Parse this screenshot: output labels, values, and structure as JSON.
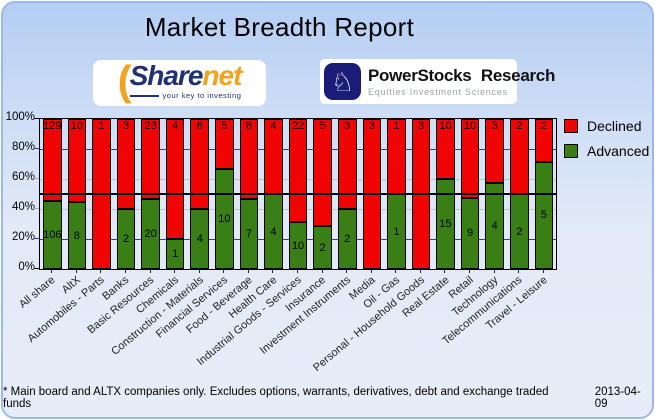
{
  "header": {
    "title": "Market Breadth Report",
    "sharenet_logo": {
      "paren": "(",
      "share_text": "Share",
      "net_text": "net",
      "tagline": "your key to investing"
    },
    "powerstocks_logo": {
      "knight_icon": "♘",
      "name": "PowerStocks  Research",
      "tagline": "Equities Investment Sciences"
    }
  },
  "chart_data": {
    "type": "bar",
    "stacked": true,
    "title": "Market Breadth Report",
    "xlabel": "",
    "ylabel": "",
    "ylim": [
      0,
      100
    ],
    "y_ticks": [
      "0%",
      "20%",
      "40%",
      "60%",
      "80%",
      "100%"
    ],
    "midline_pct": 50,
    "legend_position": "right",
    "grid": "horizontal",
    "categories": [
      "All share",
      "AltX",
      "Automobiles - Parts",
      "Banks",
      "Basic Resources",
      "Chemicals",
      "Construction - Materials",
      "Financial Services",
      "Food - Beverage",
      "Health Care",
      "Industrial Goods - Services",
      "Insurance",
      "Investment Instruments",
      "Media",
      "Oil - Gas",
      "Personal - Household Goods",
      "Real Estate",
      "Retail",
      "Technology",
      "Telecommunications",
      "Travel - Leisure"
    ],
    "series": [
      {
        "name": "Declined",
        "color": "#f00404",
        "values": [
          129,
          10,
          1,
          3,
          23,
          4,
          6,
          5,
          8,
          4,
          22,
          5,
          3,
          3,
          1,
          3,
          10,
          10,
          3,
          2,
          2
        ]
      },
      {
        "name": "Advanced",
        "color": "#3a7e16",
        "values": [
          106,
          8,
          0,
          2,
          20,
          1,
          4,
          10,
          7,
          4,
          10,
          2,
          2,
          0,
          1,
          0,
          15,
          9,
          4,
          2,
          5
        ]
      }
    ],
    "value_labels": "shown on each segment; Declined at bar top, Advanced centered in green segment"
  },
  "footer": {
    "note": "* Main board and ALTX companies only. Excludes options, warrants, derivatives, debt and exchange traded funds",
    "date": "2013-04-09"
  }
}
